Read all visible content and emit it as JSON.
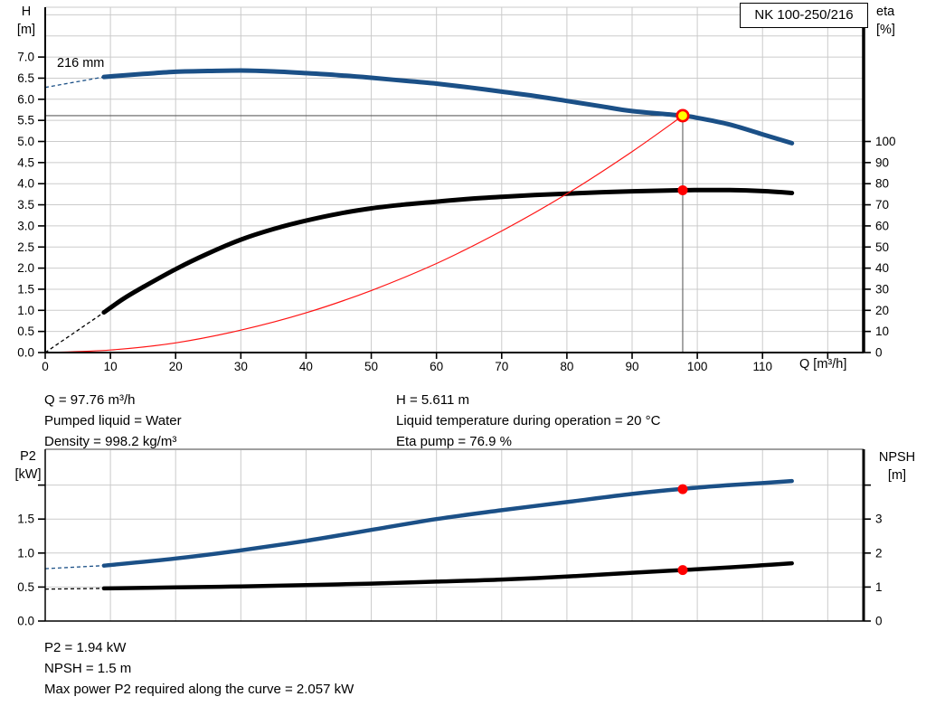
{
  "window": {
    "title_box": "NK 100-250/216"
  },
  "colors": {
    "curve_blue": "#1b5087",
    "curve_black": "#000000",
    "system_red": "#ff1414",
    "marker_red": "#ff0000",
    "marker_yellow": "#ffff00",
    "grid": "#cbcbcb",
    "crosshair": "#5f5f5f",
    "axis": "#000000",
    "panel_border": "#a0a0a0"
  },
  "top_info": {
    "left": [
      "Q = 97.76 m³/h",
      "Pumped liquid = Water",
      "Density = 998.2 kg/m³"
    ],
    "right": [
      "H = 5.611 m",
      "Liquid temperature during operation = 20 °C",
      "Eta pump = 76.9 %"
    ]
  },
  "bottom_info": [
    "P2 = 1.94 kW",
    "NPSH = 1.5 m",
    "Max power P2 required along the curve = 2.057 kW"
  ],
  "chart_data": [
    {
      "type": "line",
      "title": "QH curve with efficiency",
      "x_label": "Q [m³/h]",
      "x_range": [
        0,
        125.5
      ],
      "x_ticks_labeled": [
        0,
        10,
        20,
        30,
        40,
        50,
        60,
        70,
        80,
        90,
        100,
        110
      ],
      "x_ticks_unlabeled": [
        120
      ],
      "grid_x": [
        10,
        20,
        30,
        40,
        50,
        60,
        70,
        80,
        90,
        100,
        110,
        120
      ],
      "grid_y": [
        0.5,
        1,
        1.5,
        2,
        2.5,
        3,
        3.5,
        4,
        4.5,
        5,
        5.5,
        6,
        6.5,
        7,
        7.5,
        8
      ],
      "left_axis": {
        "label_lines": [
          "H",
          "[m]"
        ],
        "range": [
          0,
          8.18
        ],
        "decimals": 1,
        "ticks_labeled": [
          0,
          0.5,
          1,
          1.5,
          2,
          2.5,
          3,
          3.5,
          4,
          4.5,
          5,
          5.5,
          6,
          6.5,
          7
        ],
        "ticks_unlabeled": []
      },
      "right_axis": {
        "label_lines": [
          "eta",
          "[%]"
        ],
        "range": [
          0,
          163.6
        ],
        "decimals": 0,
        "to_left_ratio": 20,
        "ticks_labeled": [
          0,
          10,
          20,
          30,
          40,
          50,
          60,
          70,
          80,
          90,
          100
        ],
        "ticks_unlabeled": []
      },
      "annotation": "216 mm",
      "series": [
        {
          "name": "eta-curve",
          "axis": "right",
          "color_key": "curve_black",
          "width": 5,
          "dash_lead": [
            [
              0,
              0
            ],
            [
              9,
              19
            ]
          ],
          "points": [
            [
              9,
              19
            ],
            [
              12,
              25.5
            ],
            [
              15,
              31
            ],
            [
              20,
              39.5
            ],
            [
              25,
              47
            ],
            [
              30,
              53.5
            ],
            [
              35,
              58.5
            ],
            [
              40,
              62.5
            ],
            [
              45,
              65.8
            ],
            [
              50,
              68.3
            ],
            [
              55,
              70.1
            ],
            [
              60,
              71.5
            ],
            [
              65,
              72.8
            ],
            [
              70,
              73.8
            ],
            [
              75,
              74.6
            ],
            [
              80,
              75.3
            ],
            [
              85,
              75.9
            ],
            [
              90,
              76.4
            ],
            [
              97.76,
              76.9
            ],
            [
              105,
              77.0
            ],
            [
              110,
              76.5
            ],
            [
              114.5,
              75.6
            ]
          ]
        },
        {
          "name": "system-curve",
          "axis": "left",
          "color_key": "system_red",
          "width": 1.2,
          "points": [
            [
              0,
              0
            ],
            [
              10,
              0.06
            ],
            [
              20,
              0.23
            ],
            [
              30,
              0.53
            ],
            [
              40,
              0.94
            ],
            [
              50,
              1.47
            ],
            [
              60,
              2.11
            ],
            [
              70,
              2.88
            ],
            [
              80,
              3.76
            ],
            [
              90,
              4.76
            ],
            [
              97.76,
              5.611
            ]
          ]
        },
        {
          "name": "qh-curve-216mm",
          "axis": "left",
          "color_key": "curve_blue",
          "width": 5,
          "dash_lead": [
            [
              0,
              6.28
            ],
            [
              9,
              6.53
            ]
          ],
          "points": [
            [
              9,
              6.53
            ],
            [
              15,
              6.6
            ],
            [
              20,
              6.65
            ],
            [
              25,
              6.67
            ],
            [
              30,
              6.68
            ],
            [
              35,
              6.66
            ],
            [
              40,
              6.62
            ],
            [
              45,
              6.57
            ],
            [
              50,
              6.51
            ],
            [
              55,
              6.44
            ],
            [
              60,
              6.37
            ],
            [
              65,
              6.28
            ],
            [
              70,
              6.18
            ],
            [
              75,
              6.08
            ],
            [
              80,
              5.96
            ],
            [
              85,
              5.84
            ],
            [
              90,
              5.72
            ],
            [
              97.76,
              5.611
            ],
            [
              100,
              5.56
            ],
            [
              105,
              5.4
            ],
            [
              110,
              5.17
            ],
            [
              114.5,
              4.96
            ]
          ]
        }
      ],
      "markers": [
        {
          "name": "eta-point-marker",
          "x": 97.76,
          "y": 76.9,
          "axis": "right",
          "style": "dot"
        },
        {
          "name": "duty-point-marker",
          "x": 97.76,
          "y": 5.611,
          "axis": "left",
          "style": "duty"
        }
      ],
      "crosshair": {
        "x": 97.76,
        "y": 5.611
      }
    },
    {
      "type": "line",
      "title": "Power and NPSH curves",
      "x_label": "",
      "x_range": [
        0,
        125.5
      ],
      "x_ticks_labeled": [],
      "x_ticks_unlabeled": [],
      "grid_x": [
        10,
        20,
        30,
        40,
        50,
        60,
        70,
        80,
        90,
        100,
        110,
        120
      ],
      "grid_y": [
        0.5,
        1,
        1.5,
        2
      ],
      "left_axis": {
        "label_lines": [
          "P2",
          "[kW]"
        ],
        "range": [
          0,
          2.527
        ],
        "decimals": 1,
        "ticks_labeled": [
          0,
          0.5,
          1,
          1.5
        ],
        "ticks_unlabeled": [
          2
        ]
      },
      "right_axis": {
        "label_lines": [
          "NPSH",
          "[m]"
        ],
        "range": [
          0,
          5.053
        ],
        "decimals": 0,
        "to_left_ratio": 2,
        "ticks_labeled": [
          0,
          1,
          2,
          3
        ],
        "ticks_unlabeled": [
          4
        ]
      },
      "annotation": "",
      "series": [
        {
          "name": "npsh-curve",
          "axis": "right",
          "color_key": "curve_black",
          "width": 4.5,
          "dash_lead": [
            [
              0,
              0.94
            ],
            [
              9,
              0.96
            ]
          ],
          "points": [
            [
              9,
              0.96
            ],
            [
              20,
              0.99
            ],
            [
              30,
              1.02
            ],
            [
              40,
              1.06
            ],
            [
              50,
              1.1
            ],
            [
              60,
              1.16
            ],
            [
              70,
              1.22
            ],
            [
              80,
              1.31
            ],
            [
              90,
              1.42
            ],
            [
              97.76,
              1.5
            ],
            [
              105,
              1.58
            ],
            [
              110,
              1.64
            ],
            [
              114.5,
              1.7
            ]
          ]
        },
        {
          "name": "p2-curve",
          "axis": "left",
          "color_key": "curve_blue",
          "width": 4.5,
          "dash_lead": [
            [
              0,
              0.77
            ],
            [
              9,
              0.815
            ]
          ],
          "points": [
            [
              9,
              0.815
            ],
            [
              20,
              0.92
            ],
            [
              30,
              1.04
            ],
            [
              40,
              1.18
            ],
            [
              50,
              1.34
            ],
            [
              60,
              1.5
            ],
            [
              70,
              1.63
            ],
            [
              80,
              1.75
            ],
            [
              90,
              1.87
            ],
            [
              97.76,
              1.945
            ],
            [
              105,
              2.0
            ],
            [
              110,
              2.03
            ],
            [
              114.5,
              2.06
            ]
          ]
        }
      ],
      "markers": [
        {
          "name": "p2-point-marker",
          "x": 97.76,
          "y": 1.94,
          "axis": "left",
          "style": "dot"
        },
        {
          "name": "npsh-point-marker",
          "x": 97.76,
          "y": 1.5,
          "axis": "right",
          "style": "dot"
        }
      ]
    }
  ]
}
